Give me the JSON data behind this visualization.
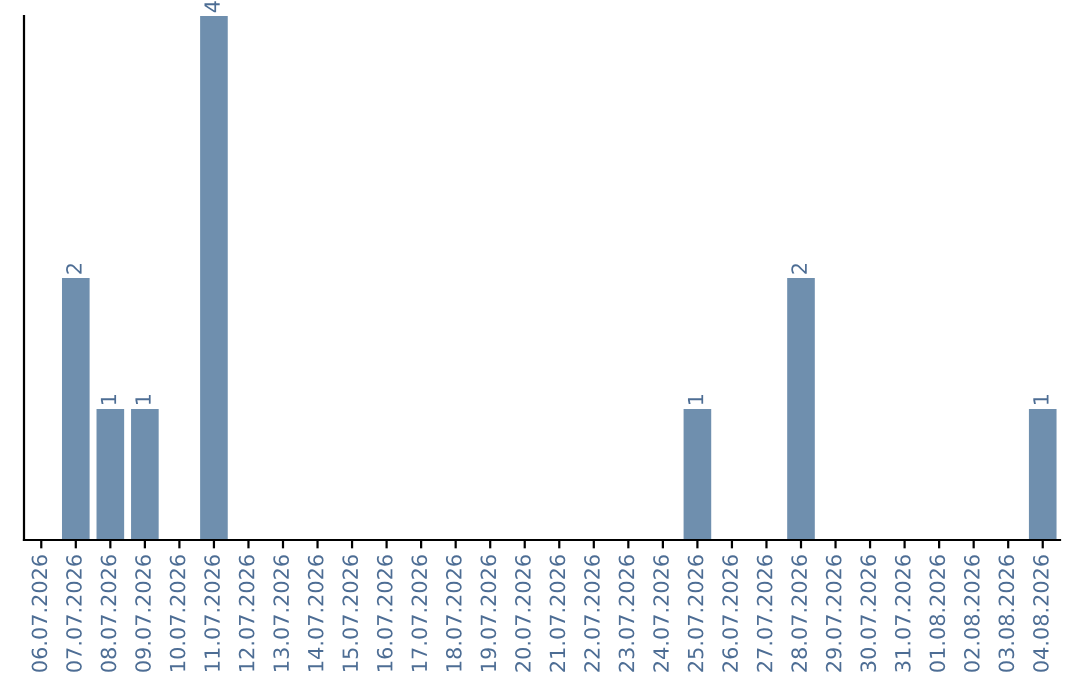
{
  "chart_data": {
    "type": "bar",
    "categories": [
      "06.07.2026",
      "07.07.2026",
      "08.07.2026",
      "09.07.2026",
      "10.07.2026",
      "11.07.2026",
      "12.07.2026",
      "13.07.2026",
      "14.07.2026",
      "15.07.2026",
      "16.07.2026",
      "17.07.2026",
      "18.07.2026",
      "19.07.2026",
      "20.07.2026",
      "21.07.2026",
      "22.07.2026",
      "23.07.2026",
      "24.07.2026",
      "25.07.2026",
      "26.07.2026",
      "27.07.2026",
      "28.07.2026",
      "29.07.2026",
      "30.07.2026",
      "31.07.2026",
      "01.08.2026",
      "02.08.2026",
      "03.08.2026",
      "04.08.2026"
    ],
    "values": [
      0,
      2,
      1,
      1,
      0,
      4,
      0,
      0,
      0,
      0,
      0,
      0,
      0,
      0,
      0,
      0,
      0,
      0,
      0,
      1,
      0,
      0,
      2,
      0,
      0,
      0,
      0,
      0,
      0,
      1
    ],
    "value_labels": [
      null,
      "2",
      "1",
      "1",
      null,
      "4",
      null,
      null,
      null,
      null,
      null,
      null,
      null,
      null,
      null,
      null,
      null,
      null,
      null,
      "1",
      null,
      null,
      "2",
      null,
      null,
      null,
      null,
      null,
      null,
      "1"
    ],
    "color": "#6f8fae",
    "tick_labels": "x",
    "grid": false,
    "legend": false
  }
}
